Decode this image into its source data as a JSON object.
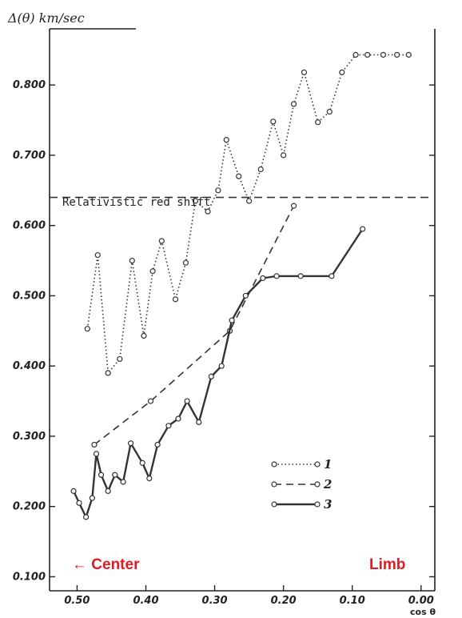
{
  "chart_data": {
    "type": "line",
    "ylabel": "Δ(θ) km/sec",
    "xlabel": "cos θ",
    "xlim": [
      0.54,
      -0.02
    ],
    "ylim": [
      0.08,
      0.88
    ],
    "x_ticks": [
      0.5,
      0.4,
      0.3,
      0.2,
      0.1,
      0.0
    ],
    "x_tick_labels": [
      "0.50",
      "0.40",
      "0.30",
      "0.20",
      "0.10",
      "0.00"
    ],
    "y_ticks": [
      0.1,
      0.2,
      0.3,
      0.4,
      0.5,
      0.6,
      0.7,
      0.8
    ],
    "y_tick_labels": [
      "0.100",
      "0.200",
      "0.300",
      "0.400",
      "0.500",
      "0.600",
      "0.700",
      "0.800"
    ],
    "grid": false,
    "series": [
      {
        "name": "1",
        "style": "dotted",
        "x": [
          0.485,
          0.47,
          0.455,
          0.438,
          0.42,
          0.403,
          0.39,
          0.377,
          0.357,
          0.342,
          0.328,
          0.31,
          0.295,
          0.283,
          0.265,
          0.25,
          0.233,
          0.215,
          0.2,
          0.185,
          0.17,
          0.15,
          0.133,
          0.115,
          0.095,
          0.078,
          0.055,
          0.035,
          0.018
        ],
        "y": [
          0.453,
          0.558,
          0.39,
          0.41,
          0.55,
          0.443,
          0.535,
          0.578,
          0.495,
          0.547,
          0.635,
          0.62,
          0.65,
          0.722,
          0.67,
          0.635,
          0.68,
          0.748,
          0.7,
          0.773,
          0.818,
          0.747,
          0.762,
          0.818,
          0.843,
          0.843,
          0.843,
          0.843,
          0.843
        ]
      },
      {
        "name": "2",
        "style": "dashed",
        "x": [
          0.475,
          0.393,
          0.278,
          0.185
        ],
        "y": [
          0.288,
          0.35,
          0.45,
          0.628
        ]
      },
      {
        "name": "3",
        "style": "solid",
        "x": [
          0.505,
          0.497,
          0.487,
          0.478,
          0.472,
          0.465,
          0.455,
          0.445,
          0.433,
          0.422,
          0.405,
          0.395,
          0.383,
          0.367,
          0.353,
          0.34,
          0.323,
          0.305,
          0.29,
          0.275,
          0.255,
          0.23,
          0.21,
          0.175,
          0.13,
          0.085
        ],
        "y": [
          0.222,
          0.205,
          0.185,
          0.212,
          0.275,
          0.245,
          0.222,
          0.245,
          0.235,
          0.29,
          0.262,
          0.24,
          0.288,
          0.315,
          0.325,
          0.35,
          0.32,
          0.385,
          0.4,
          0.465,
          0.5,
          0.525,
          0.528,
          0.528,
          0.528,
          0.595
        ]
      }
    ],
    "reference_line": {
      "label": "Relativistic red shift",
      "y": 0.64,
      "style": "dashed"
    },
    "legend": {
      "placement": "bottom-right",
      "entries": [
        "1",
        "2",
        "3"
      ]
    },
    "annotations": {
      "center": "← Center",
      "limb": "Limb"
    }
  }
}
